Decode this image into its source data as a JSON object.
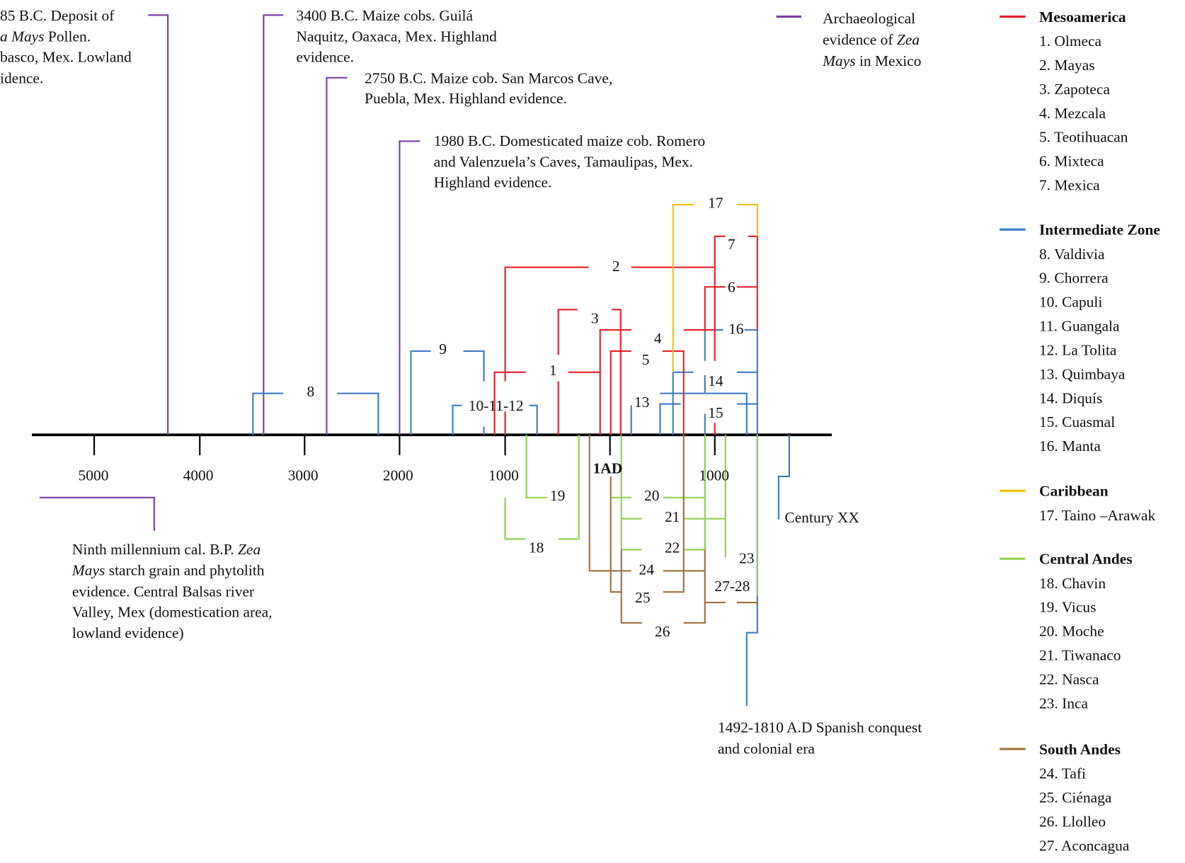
{
  "colors": {
    "mexico_evidence": "#7b3fa8",
    "mesoamerica": "#e8202a",
    "intermediate_zone": "#3f7cc4",
    "caribbean": "#f2c200",
    "central_andes": "#8fd14f",
    "south_andes": "#a0703c",
    "axis": "#000000"
  },
  "axis": {
    "ticks": [
      "5000",
      "4000",
      "3000",
      "2000",
      "1000",
      "1AD",
      "1000"
    ]
  },
  "annotations": {
    "pollen": {
      "l1": "85 B.C. Deposit of",
      "l2_italic": "a Mays",
      "l2_rest": " Pollen.",
      "l3": "basco, Mex. Lowland",
      "l4": "idence."
    },
    "guila": {
      "l1": "3400 B.C. Maize cobs. Guilá",
      "l2": "Naquitz, Oaxaca, Mex. Highland",
      "l3": "evidence."
    },
    "san_marcos": {
      "l1": "2750 B.C. Maize cob. San Marcos Cave,",
      "l2": "Puebla, Mex.  Highland evidence."
    },
    "romero": {
      "l1": "1980 B.C. Domesticated maize cob. Romero",
      "l2": "and Valenzuela’s Caves, Tamaulipas, Mex.",
      "l3": "Highland evidence."
    },
    "balsas": {
      "l1_rest": "Ninth millennium cal. B.P. ",
      "l1_italic": "Zea",
      "l2_italic": "Mays",
      "l2_rest": " starch grain and phytolith",
      "l3": "evidence. Central Balsas river",
      "l4": "Valley, Mex (domestication area,",
      "l5": "lowland evidence)"
    },
    "century_xx": "Century XX",
    "spanish": {
      "l1": "1492-1810 A.D Spanish conquest",
      "l2": "and colonial era"
    }
  },
  "culture_numbers": {
    "n1": "1",
    "n2": "2",
    "n3": "3",
    "n4": "4",
    "n5": "5",
    "n6": "6",
    "n7": "7",
    "n8": "8",
    "n9": "9",
    "n10_12": "10-11-12",
    "n13": "13",
    "n14": "14",
    "n15": "15",
    "n16": "16",
    "n17": "17",
    "n18": "18",
    "n19": "19",
    "n20": "20",
    "n21": "21",
    "n22": "22",
    "n23": "23",
    "n24": "24",
    "n25": "25",
    "n26": "26",
    "n27_28": "27-28"
  },
  "legend": {
    "mexico": {
      "l1": "Archaeological",
      "l2_rest": "evidence of ",
      "l2_italic": "Zea",
      "l3_italic": "Mays",
      "l3_rest": " in Mexico"
    },
    "groups": [
      {
        "title": "Mesoamerica",
        "color_key": "mesoamerica",
        "items": [
          "1. Olmeca",
          "2. Mayas",
          "3. Zapoteca",
          "4. Mezcala",
          "5. Teotihuacan",
          "6. Mixteca",
          "7. Mexica"
        ]
      },
      {
        "title": "Intermediate Zone",
        "color_key": "intermediate_zone",
        "items": [
          "8. Valdivia",
          "9. Chorrera",
          "10. Capuli",
          "11. Guangala",
          "12. La Tolita",
          "13. Quimbaya",
          "14. Diquís",
          "15. Cuasmal",
          "16. Manta"
        ]
      },
      {
        "title": "Caribbean",
        "color_key": "caribbean",
        "items": [
          "17. Taino –Arawak"
        ]
      },
      {
        "title": "Central Andes",
        "color_key": "central_andes",
        "items": [
          "18. Chavin",
          "19. Vicus",
          "20. Moche",
          "21. Tiwanaco",
          "22. Nasca",
          "23. Inca"
        ]
      },
      {
        "title": "South Andes",
        "color_key": "south_andes",
        "items": [
          "24. Tafi",
          "25. Ciénaga",
          "26. Llolleo",
          "27. Aconcagua"
        ]
      }
    ]
  }
}
